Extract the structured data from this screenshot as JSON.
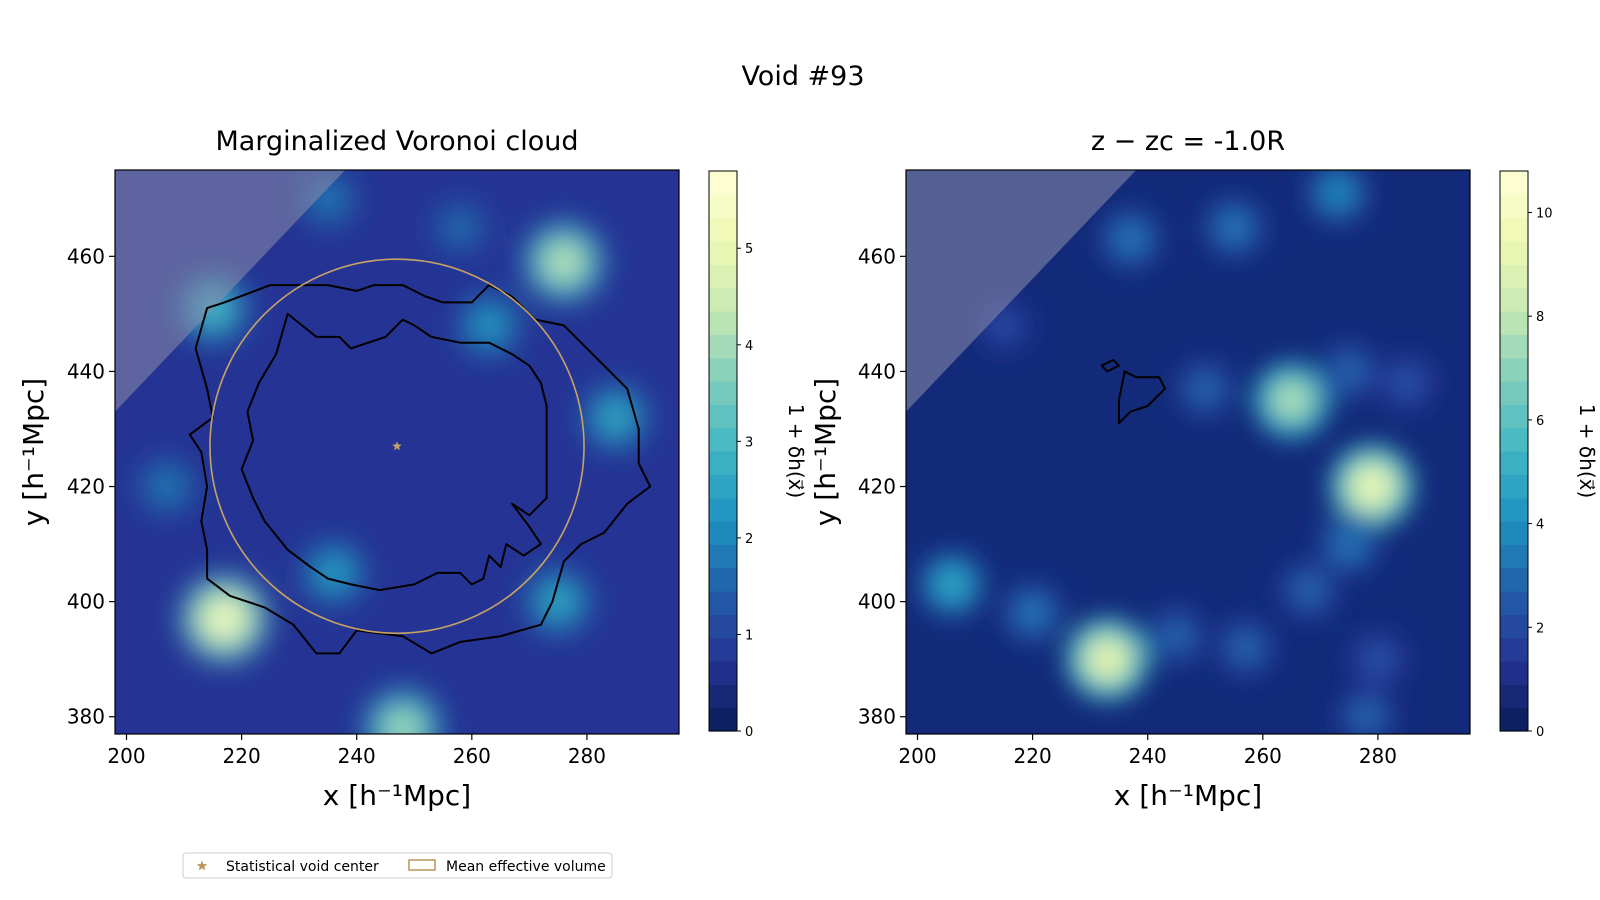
{
  "figure_title": "Void #93",
  "legend": {
    "items": [
      {
        "marker": "star",
        "label": "Statistical void center",
        "color": "#b8955a"
      },
      {
        "marker": "rect",
        "label": "Mean effective volume",
        "color": "#b8955a"
      }
    ]
  },
  "colors": {
    "colormap": [
      "#081d58",
      "#253494",
      "#225ea8",
      "#1d91c0",
      "#41b6c4",
      "#7fcdbb",
      "#c7e9b4",
      "#edf8b1",
      "#ffffd9"
    ],
    "mask": "#8c8caa",
    "circle": "#c8a264",
    "contour": "#000000"
  },
  "chart_data": [
    {
      "type": "heatmap",
      "title": "Marginalized Voronoi cloud",
      "xlabel": "x [h⁻¹Mpc]",
      "ylabel": "y [h⁻¹Mpc]",
      "xlim": [
        198,
        296
      ],
      "ylim": [
        377,
        475
      ],
      "xticks": [
        200,
        220,
        240,
        260,
        280
      ],
      "yticks": [
        380,
        400,
        420,
        440,
        460
      ],
      "colorbar": {
        "label": "1 + δh(x⃗)",
        "range": [
          0,
          5.8
        ],
        "ticks": [
          0,
          1,
          2,
          3,
          4,
          5
        ]
      },
      "void_center": [
        247,
        427
      ],
      "mean_effective_radius": 32.5,
      "masked_region": "upper-left corner",
      "density_peaks": [
        {
          "x": 217,
          "y": 397,
          "value": 5.5
        },
        {
          "x": 276,
          "y": 459,
          "value": 4.5
        },
        {
          "x": 215,
          "y": 451,
          "value": 3.2
        },
        {
          "x": 263,
          "y": 448,
          "value": 2.5
        },
        {
          "x": 248,
          "y": 378,
          "value": 4.2
        },
        {
          "x": 285,
          "y": 432,
          "value": 2.8
        },
        {
          "x": 236,
          "y": 405,
          "value": 2.6
        },
        {
          "x": 275,
          "y": 400,
          "value": 2.8
        },
        {
          "x": 207,
          "y": 420,
          "value": 2.0
        },
        {
          "x": 235,
          "y": 470,
          "value": 2.0
        },
        {
          "x": 258,
          "y": 465,
          "value": 1.8
        }
      ],
      "contours": [
        [
          [
            211,
            429
          ],
          [
            215,
            432
          ],
          [
            214,
            437
          ],
          [
            212,
            444
          ],
          [
            214,
            451
          ],
          [
            217,
            452
          ],
          [
            225,
            455
          ],
          [
            235,
            455
          ],
          [
            240,
            454
          ],
          [
            243,
            455
          ],
          [
            248,
            455
          ],
          [
            252,
            453
          ],
          [
            255,
            452
          ],
          [
            260,
            452
          ],
          [
            263,
            455
          ],
          [
            267,
            453
          ],
          [
            271,
            449
          ],
          [
            276,
            448
          ],
          [
            280,
            444
          ],
          [
            284,
            440
          ],
          [
            287,
            437
          ],
          [
            289,
            430
          ],
          [
            289,
            424
          ],
          [
            291,
            420
          ],
          [
            287,
            417
          ],
          [
            283,
            412
          ],
          [
            279,
            410
          ],
          [
            276,
            407
          ],
          [
            274,
            400
          ],
          [
            272,
            396
          ],
          [
            265,
            394
          ],
          [
            258,
            393
          ],
          [
            253,
            391
          ],
          [
            248,
            394
          ],
          [
            240,
            395
          ],
          [
            237,
            391
          ],
          [
            233,
            391
          ],
          [
            229,
            396
          ],
          [
            224,
            399
          ],
          [
            218,
            401
          ],
          [
            214,
            404
          ],
          [
            214,
            409
          ],
          [
            213,
            414
          ],
          [
            214,
            420
          ],
          [
            213,
            426
          ],
          [
            211,
            429
          ]
        ],
        [
          [
            228,
            450
          ],
          [
            233,
            446
          ],
          [
            237,
            446
          ],
          [
            239,
            444
          ],
          [
            242,
            445
          ],
          [
            245,
            446
          ],
          [
            248,
            449
          ],
          [
            250,
            448
          ],
          [
            253,
            446
          ],
          [
            258,
            445
          ],
          [
            263,
            445
          ],
          [
            267,
            443
          ],
          [
            270,
            441
          ],
          [
            272,
            438
          ],
          [
            273,
            434
          ],
          [
            273,
            429
          ],
          [
            273,
            423
          ],
          [
            273,
            418
          ],
          [
            270,
            415
          ],
          [
            267,
            417
          ],
          [
            270,
            413
          ],
          [
            272,
            410
          ],
          [
            269,
            408
          ],
          [
            266,
            410
          ],
          [
            265,
            406
          ],
          [
            263,
            408
          ],
          [
            262,
            404
          ],
          [
            260,
            403
          ],
          [
            258,
            405
          ],
          [
            254,
            405
          ],
          [
            250,
            403
          ],
          [
            244,
            402
          ],
          [
            239,
            403
          ],
          [
            235,
            404
          ],
          [
            232,
            406
          ],
          [
            228,
            409
          ],
          [
            224,
            414
          ],
          [
            222,
            418
          ],
          [
            220,
            423
          ],
          [
            222,
            428
          ],
          [
            221,
            433
          ],
          [
            223,
            438
          ],
          [
            226,
            443
          ],
          [
            228,
            450
          ]
        ]
      ]
    },
    {
      "type": "heatmap",
      "title": "z − zc = -1.0R",
      "xlabel": "x [h⁻¹Mpc]",
      "ylabel": "y [h⁻¹Mpc]",
      "xlim": [
        198,
        296
      ],
      "ylim": [
        377,
        475
      ],
      "xticks": [
        200,
        220,
        240,
        260,
        280
      ],
      "yticks": [
        380,
        400,
        420,
        440,
        460
      ],
      "colorbar": {
        "label": "1 + δh(x⃗)",
        "range": [
          0,
          10.8
        ],
        "ticks": [
          0,
          2,
          4,
          6,
          8,
          10
        ]
      },
      "masked_region": "upper-left corner",
      "density_peaks": [
        {
          "x": 233,
          "y": 390,
          "value": 9.5
        },
        {
          "x": 279,
          "y": 420,
          "value": 9.8
        },
        {
          "x": 265,
          "y": 435,
          "value": 8.0
        },
        {
          "x": 206,
          "y": 403,
          "value": 5.0
        },
        {
          "x": 220,
          "y": 398,
          "value": 3.5
        },
        {
          "x": 245,
          "y": 394,
          "value": 3.0
        },
        {
          "x": 275,
          "y": 410,
          "value": 3.5
        },
        {
          "x": 257,
          "y": 392,
          "value": 3.0
        },
        {
          "x": 268,
          "y": 402,
          "value": 3.0
        },
        {
          "x": 237,
          "y": 463,
          "value": 3.5
        },
        {
          "x": 255,
          "y": 465,
          "value": 3.5
        },
        {
          "x": 273,
          "y": 471,
          "value": 4.0
        },
        {
          "x": 275,
          "y": 440,
          "value": 3.0
        },
        {
          "x": 285,
          "y": 438,
          "value": 2.5
        },
        {
          "x": 215,
          "y": 448,
          "value": 2.2
        },
        {
          "x": 250,
          "y": 437,
          "value": 3.0
        },
        {
          "x": 278,
          "y": 380,
          "value": 3.0
        },
        {
          "x": 280,
          "y": 390,
          "value": 2.5
        }
      ],
      "contours": [
        [
          [
            235,
            431
          ],
          [
            237,
            433
          ],
          [
            240,
            434
          ],
          [
            243,
            437
          ],
          [
            242,
            439
          ],
          [
            238,
            439
          ],
          [
            236,
            440
          ],
          [
            235,
            435
          ],
          [
            235,
            431
          ]
        ],
        [
          [
            232,
            441
          ],
          [
            234,
            442
          ],
          [
            235,
            441
          ],
          [
            233,
            440
          ],
          [
            232,
            441
          ]
        ]
      ]
    }
  ]
}
